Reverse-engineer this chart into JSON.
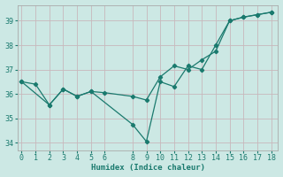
{
  "xlabel": "Humidex (Indice chaleur)",
  "background_color": "#cce8e4",
  "grid_color": "#b8d8d4",
  "line_color": "#1a7a6e",
  "series1": {
    "x": [
      0,
      1,
      2,
      3,
      4,
      5,
      6,
      8,
      9,
      10,
      11,
      12,
      13,
      14,
      15,
      16,
      17,
      18
    ],
    "y": [
      36.5,
      36.4,
      35.55,
      36.2,
      35.9,
      36.1,
      36.05,
      35.9,
      35.75,
      36.7,
      37.15,
      37.0,
      37.4,
      37.75,
      39.0,
      39.15,
      39.25,
      39.35
    ]
  },
  "series2": {
    "x": [
      0,
      2,
      3,
      4,
      5,
      8,
      9,
      10,
      11,
      12,
      13,
      14,
      15,
      16,
      17,
      18
    ],
    "y": [
      36.5,
      35.55,
      36.2,
      35.9,
      36.1,
      34.75,
      34.05,
      36.5,
      36.3,
      37.15,
      37.0,
      38.0,
      39.0,
      39.15,
      39.25,
      39.35
    ]
  },
  "xlim": [
    -0.3,
    18.5
  ],
  "ylim": [
    33.7,
    39.65
  ],
  "xticks": [
    0,
    1,
    2,
    3,
    4,
    5,
    6,
    8,
    9,
    10,
    11,
    12,
    13,
    14,
    15,
    16,
    17,
    18
  ],
  "yticks": [
    34,
    35,
    36,
    37,
    38,
    39
  ],
  "label_fontsize": 6.5,
  "tick_fontsize": 6.0
}
